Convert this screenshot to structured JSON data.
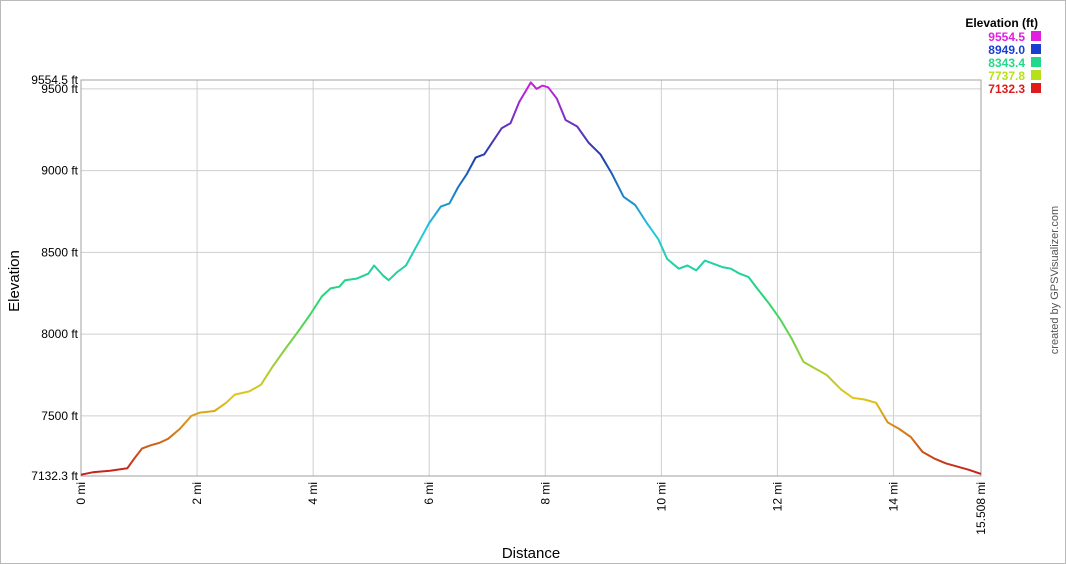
{
  "chart_data": {
    "type": "line",
    "xlabel": "Distance",
    "ylabel": "Elevation",
    "credit": "created by GPSVisualizer.com",
    "grid": true,
    "xlim": [
      0,
      15.508
    ],
    "ylim": [
      7132.3,
      9554.5
    ],
    "x_ticks": [
      {
        "value": 0,
        "label": "0 mi"
      },
      {
        "value": 2,
        "label": "2 mi"
      },
      {
        "value": 4,
        "label": "4 mi"
      },
      {
        "value": 6,
        "label": "6 mi"
      },
      {
        "value": 8,
        "label": "8 mi"
      },
      {
        "value": 10,
        "label": "10 mi"
      },
      {
        "value": 12,
        "label": "12 mi"
      },
      {
        "value": 14,
        "label": "14 mi"
      },
      {
        "value": 15.508,
        "label": "15.508 mi"
      }
    ],
    "y_ticks": [
      {
        "value": 7132.3,
        "label": "7132.3 ft"
      },
      {
        "value": 7500,
        "label": "7500 ft"
      },
      {
        "value": 8000,
        "label": "8000 ft"
      },
      {
        "value": 8500,
        "label": "8500 ft"
      },
      {
        "value": 9000,
        "label": "9000 ft"
      },
      {
        "value": 9500,
        "label": "9500 ft"
      },
      {
        "value": 9554.5,
        "label": "9554.5 ft"
      }
    ],
    "legend": {
      "title": "Elevation (ft)",
      "placement": "top-right",
      "entries": [
        {
          "label": "9554.5",
          "color": "#e020e0"
        },
        {
          "label": "8949.0",
          "color": "#1a3fd0"
        },
        {
          "label": "8343.4",
          "color": "#22d88a"
        },
        {
          "label": "7737.8",
          "color": "#b8e01a"
        },
        {
          "label": "7132.3",
          "color": "#e01a1a"
        }
      ]
    },
    "series": [
      {
        "x": [
          0,
          0.2,
          0.5,
          0.8,
          0.9,
          1.05,
          1.2,
          1.35,
          1.5,
          1.7,
          1.9,
          2.05,
          2.3,
          2.5,
          2.65,
          2.9,
          3.1,
          3.3,
          3.5,
          3.75,
          3.95,
          4.15,
          4.3,
          4.45,
          4.55,
          4.75,
          4.95,
          5.05,
          5.2,
          5.3,
          5.45,
          5.6,
          5.8,
          6.0,
          6.2,
          6.35,
          6.5,
          6.65,
          6.8,
          6.95,
          7.1,
          7.25,
          7.4,
          7.55,
          7.65,
          7.75,
          7.85,
          7.95,
          8.05,
          8.2,
          8.35,
          8.55,
          8.75,
          8.95,
          9.15,
          9.35,
          9.55,
          9.75,
          9.95,
          10.1,
          10.3,
          10.45,
          10.6,
          10.75,
          10.9,
          11.05,
          11.2,
          11.35,
          11.5,
          11.65,
          11.85,
          12.05,
          12.25,
          12.45,
          12.65,
          12.85,
          13.1,
          13.3,
          13.5,
          13.7,
          13.9,
          14.1,
          14.3,
          14.5,
          14.7,
          14.9,
          15.1,
          15.3,
          15.508
        ],
        "y": [
          7140,
          7155,
          7165,
          7180,
          7230,
          7300,
          7320,
          7335,
          7360,
          7420,
          7500,
          7520,
          7530,
          7580,
          7630,
          7650,
          7690,
          7800,
          7900,
          8020,
          8120,
          8230,
          8280,
          8290,
          8330,
          8340,
          8370,
          8420,
          8360,
          8330,
          8380,
          8420,
          8550,
          8680,
          8780,
          8800,
          8900,
          8980,
          9080,
          9100,
          9180,
          9260,
          9290,
          9420,
          9480,
          9540,
          9500,
          9520,
          9510,
          9440,
          9310,
          9270,
          9170,
          9100,
          8980,
          8840,
          8790,
          8680,
          8580,
          8460,
          8400,
          8420,
          8390,
          8450,
          8430,
          8410,
          8400,
          8370,
          8350,
          8280,
          8190,
          8090,
          7970,
          7830,
          7790,
          7750,
          7660,
          7610,
          7600,
          7580,
          7460,
          7420,
          7370,
          7280,
          7240,
          7210,
          7190,
          7170,
          7145
        ]
      }
    ]
  }
}
